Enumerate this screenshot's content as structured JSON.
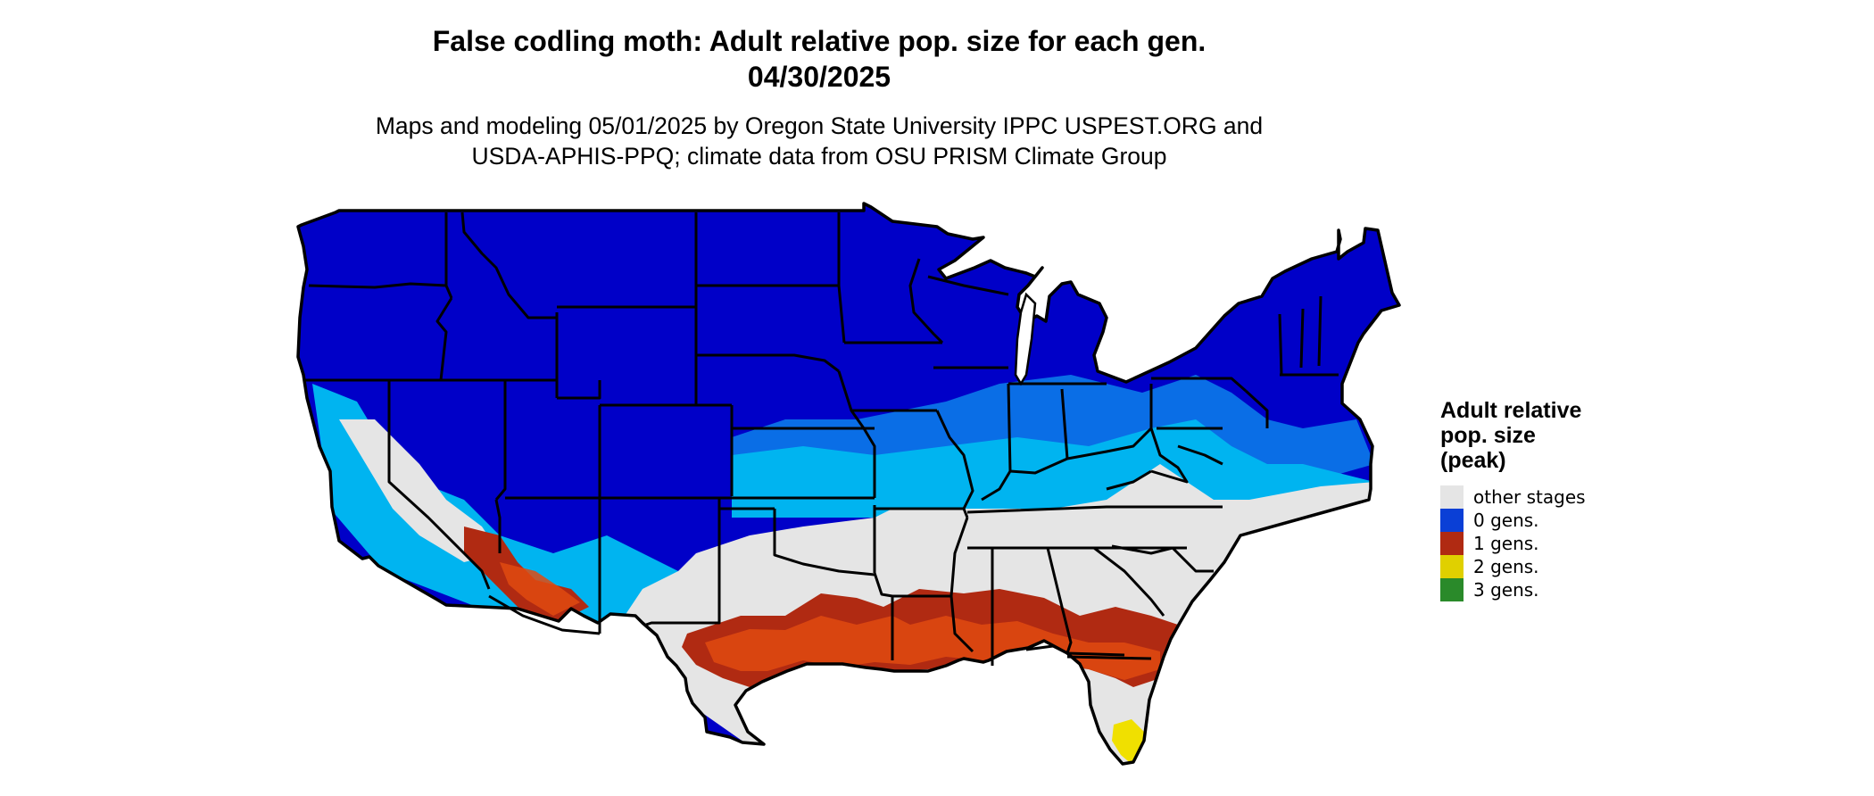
{
  "title_line1": "False codling moth: Adult relative pop. size for each gen.",
  "title_line2": "04/30/2025",
  "subtitle_line1": "Maps and modeling 05/01/2025 by Oregon State University IPPC USPEST.ORG and",
  "subtitle_line2": "USDA-APHIS-PPQ; climate data from OSU PRISM Climate Group",
  "legend": {
    "title_lines": [
      "Adult relative",
      "pop. size",
      "(peak)"
    ],
    "items": [
      {
        "label": "other stages",
        "color": "#e5e5e5"
      },
      {
        "label": "0 gens.",
        "color": "#0a3fd6"
      },
      {
        "label": "1 gens.",
        "color": "#b02a12"
      },
      {
        "label": "2 gens.",
        "color": "#e0d000"
      },
      {
        "label": "3 gens.",
        "color": "#2a8a2a"
      }
    ]
  },
  "map_colors": {
    "background_state_fill": "#0000c8",
    "gradient_light_blue": "#00b4f0",
    "gradient_mid_blue": "#0a6ee6",
    "other_stages": "#e5e5e5",
    "one_gen_red": "#b02a12",
    "one_gen_orange": "#e04a10",
    "two_gen_yellow": "#f0e000",
    "border": "#000000"
  }
}
